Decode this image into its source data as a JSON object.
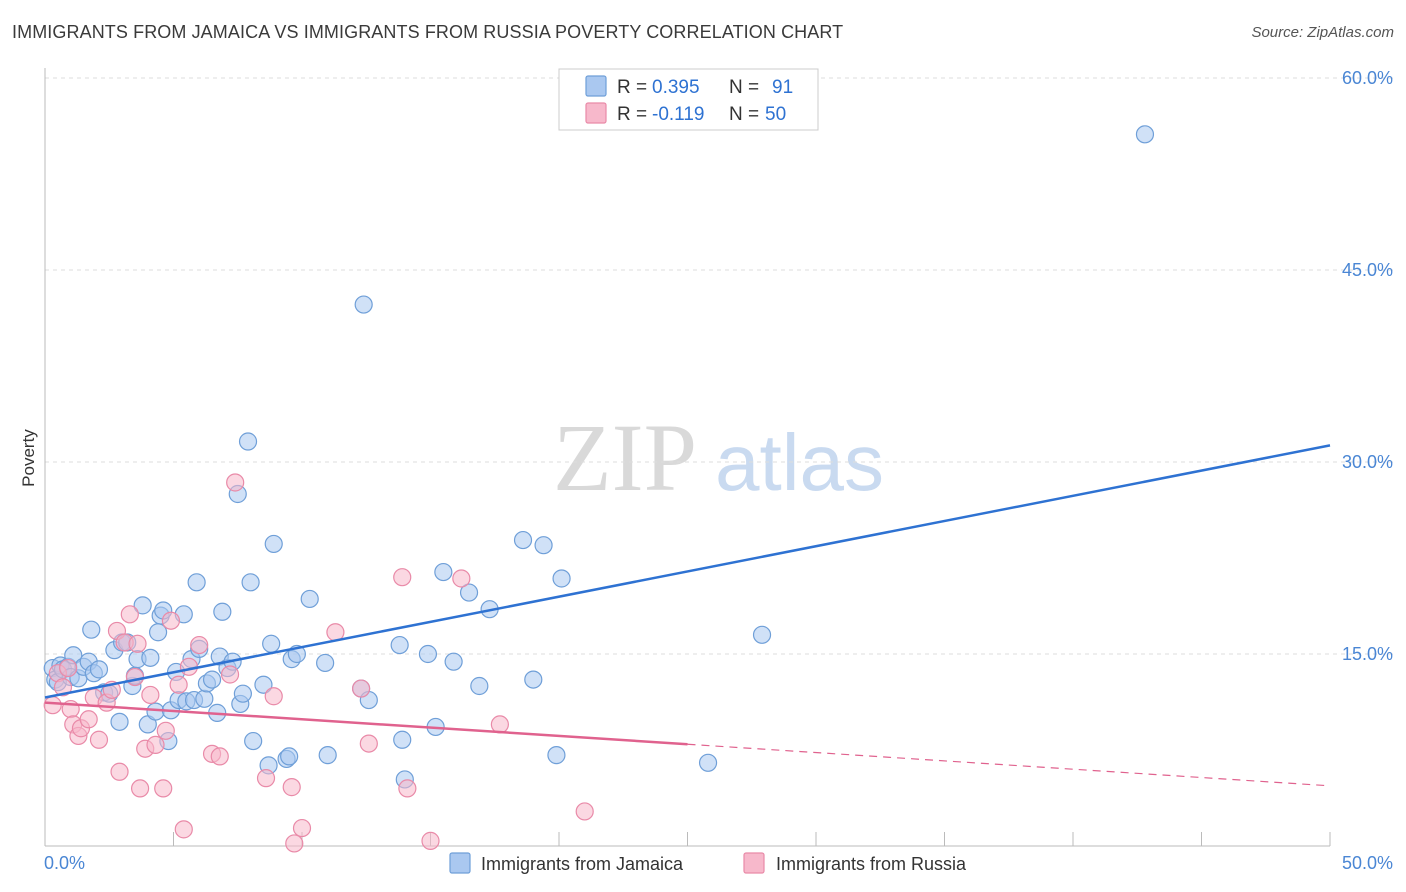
{
  "header": {
    "title": "IMMIGRANTS FROM JAMAICA VS IMMIGRANTS FROM RUSSIA POVERTY CORRELATION CHART",
    "source": "Source: ZipAtlas.com"
  },
  "watermark": {
    "zip": "ZIP",
    "atlas": "atlas"
  },
  "colors": {
    "blue_fill": "#aac8f0",
    "blue_stroke": "#6f9fd8",
    "blue_line": "#2e72d2",
    "pink_fill": "#f7b8cb",
    "pink_stroke": "#e98aa8",
    "pink_line": "#e0628e",
    "tick_blue": "#4a86d4",
    "grid": "#dddddd"
  },
  "chart_data": {
    "type": "scatter",
    "title": "IMMIGRANTS FROM JAMAICA VS IMMIGRANTS FROM RUSSIA POVERTY CORRELATION CHART",
    "xlabel": "",
    "ylabel": "Poverty",
    "xlim": [
      0,
      50
    ],
    "ylim": [
      0,
      60
    ],
    "x_tick_labels": [
      "0.0%",
      "50.0%"
    ],
    "y_ticks": [
      15,
      30,
      45,
      60
    ],
    "y_tick_labels": [
      "15.0%",
      "30.0%",
      "45.0%",
      "60.0%"
    ],
    "legend": [
      {
        "label": "R = ",
        "r": "0.395",
        "n_label": "N = ",
        "n": "91"
      },
      {
        "label": "R = ",
        "r": "-0.119",
        "n_label": "N = ",
        "n": "50"
      }
    ],
    "series": [
      {
        "name": "Immigrants from Jamaica",
        "trend": {
          "x": [
            0,
            50
          ],
          "y": [
            11.6,
            31.3
          ],
          "dashed_from": null
        },
        "points": [
          [
            0.3,
            13.9
          ],
          [
            0.4,
            13.0
          ],
          [
            0.5,
            12.8
          ],
          [
            0.6,
            14.1
          ],
          [
            0.7,
            13.8
          ],
          [
            0.9,
            14.0
          ],
          [
            1.0,
            13.2
          ],
          [
            1.1,
            14.9
          ],
          [
            1.3,
            13.1
          ],
          [
            1.5,
            14.0
          ],
          [
            1.7,
            14.4
          ],
          [
            1.8,
            16.9
          ],
          [
            1.9,
            13.5
          ],
          [
            2.1,
            13.8
          ],
          [
            2.3,
            12.0
          ],
          [
            2.5,
            11.9
          ],
          [
            2.7,
            15.3
          ],
          [
            2.9,
            9.7
          ],
          [
            3.0,
            15.9
          ],
          [
            3.2,
            15.9
          ],
          [
            3.4,
            12.5
          ],
          [
            3.5,
            13.3
          ],
          [
            3.6,
            14.6
          ],
          [
            3.8,
            18.8
          ],
          [
            4.0,
            9.5
          ],
          [
            4.1,
            14.7
          ],
          [
            4.3,
            10.5
          ],
          [
            4.4,
            16.7
          ],
          [
            4.5,
            18.0
          ],
          [
            4.6,
            18.4
          ],
          [
            4.8,
            8.2
          ],
          [
            4.9,
            10.6
          ],
          [
            5.1,
            13.6
          ],
          [
            5.2,
            11.4
          ],
          [
            5.4,
            18.1
          ],
          [
            5.5,
            11.3
          ],
          [
            5.7,
            14.6
          ],
          [
            5.8,
            11.4
          ],
          [
            5.9,
            20.6
          ],
          [
            6.0,
            15.4
          ],
          [
            6.2,
            11.5
          ],
          [
            6.3,
            12.7
          ],
          [
            6.5,
            13.0
          ],
          [
            6.7,
            10.4
          ],
          [
            6.8,
            14.8
          ],
          [
            6.9,
            18.3
          ],
          [
            7.1,
            13.9
          ],
          [
            7.3,
            14.4
          ],
          [
            7.5,
            27.5
          ],
          [
            7.6,
            11.1
          ],
          [
            7.7,
            11.9
          ],
          [
            7.9,
            31.6
          ],
          [
            8.0,
            20.6
          ],
          [
            8.1,
            8.2
          ],
          [
            8.5,
            12.6
          ],
          [
            8.7,
            6.3
          ],
          [
            8.8,
            15.8
          ],
          [
            8.9,
            23.6
          ],
          [
            9.4,
            6.8
          ],
          [
            9.5,
            7.0
          ],
          [
            9.6,
            14.6
          ],
          [
            9.8,
            15.0
          ],
          [
            10.3,
            19.3
          ],
          [
            10.9,
            14.3
          ],
          [
            11.0,
            7.1
          ],
          [
            12.4,
            42.3
          ],
          [
            12.3,
            12.3
          ],
          [
            12.6,
            11.4
          ],
          [
            13.8,
            15.7
          ],
          [
            13.9,
            8.3
          ],
          [
            14.0,
            5.2
          ],
          [
            14.9,
            15.0
          ],
          [
            15.2,
            9.3
          ],
          [
            15.5,
            21.4
          ],
          [
            15.9,
            14.4
          ],
          [
            16.5,
            19.8
          ],
          [
            16.9,
            12.5
          ],
          [
            17.3,
            18.5
          ],
          [
            18.6,
            23.9
          ],
          [
            19.0,
            13.0
          ],
          [
            19.4,
            23.5
          ],
          [
            19.9,
            7.1
          ],
          [
            20.1,
            20.9
          ],
          [
            25.8,
            6.5
          ],
          [
            27.9,
            16.5
          ],
          [
            42.8,
            55.6
          ]
        ]
      },
      {
        "name": "Immigrants from Russia",
        "trend": {
          "x": [
            0,
            50
          ],
          "y": [
            11.2,
            4.7
          ],
          "dashed_from": 25
        },
        "points": [
          [
            0.3,
            11.0
          ],
          [
            0.5,
            13.5
          ],
          [
            0.7,
            12.4
          ],
          [
            0.9,
            13.9
          ],
          [
            1.0,
            10.7
          ],
          [
            1.1,
            9.5
          ],
          [
            1.3,
            8.6
          ],
          [
            1.4,
            9.2
          ],
          [
            1.7,
            9.9
          ],
          [
            1.9,
            11.6
          ],
          [
            2.1,
            8.3
          ],
          [
            2.4,
            11.2
          ],
          [
            2.6,
            12.2
          ],
          [
            2.8,
            16.8
          ],
          [
            2.9,
            5.8
          ],
          [
            3.1,
            15.9
          ],
          [
            3.3,
            18.1
          ],
          [
            3.5,
            13.2
          ],
          [
            3.7,
            4.5
          ],
          [
            3.9,
            7.6
          ],
          [
            4.1,
            11.8
          ],
          [
            4.3,
            7.9
          ],
          [
            4.6,
            4.5
          ],
          [
            4.7,
            9.0
          ],
          [
            4.9,
            17.6
          ],
          [
            5.2,
            12.6
          ],
          [
            5.4,
            1.3
          ],
          [
            5.6,
            14.0
          ],
          [
            6.0,
            15.7
          ],
          [
            6.5,
            7.2
          ],
          [
            6.8,
            7.0
          ],
          [
            7.2,
            13.4
          ],
          [
            7.4,
            28.4
          ],
          [
            8.6,
            5.3
          ],
          [
            8.9,
            11.7
          ],
          [
            9.6,
            4.6
          ],
          [
            10.0,
            1.4
          ],
          [
            11.3,
            16.7
          ],
          [
            12.3,
            12.3
          ],
          [
            12.6,
            8.0
          ],
          [
            13.9,
            21.0
          ],
          [
            14.1,
            4.5
          ],
          [
            15.0,
            0.4
          ],
          [
            16.2,
            20.9
          ],
          [
            17.7,
            9.5
          ],
          [
            21.0,
            2.7
          ],
          [
            3.6,
            15.8
          ],
          [
            9.7,
            0.2
          ]
        ]
      }
    ]
  },
  "bottom_legend": [
    {
      "label": "Immigrants from Jamaica"
    },
    {
      "label": "Immigrants from Russia"
    }
  ]
}
